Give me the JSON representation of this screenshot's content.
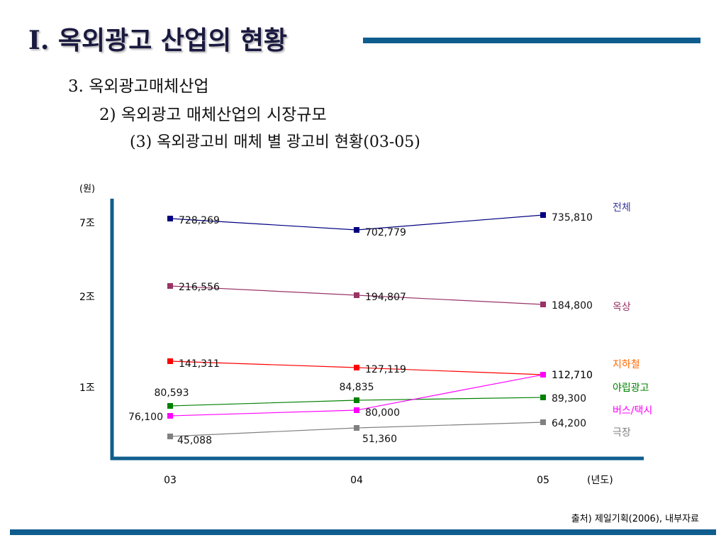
{
  "slide": {
    "title": "I.  옥외광고 산업의 현황",
    "subtitle1": "3. 옥외광고매체산업",
    "subtitle2": "2) 옥외광고 매체산업의 시장규모",
    "subtitle3": "(3) 옥외광고비 매체 별 광고비 현황(03-05)",
    "source": "출처) 제일기획(2006), 내부자료"
  },
  "chart_data": {
    "type": "line",
    "unit_label": "(원)",
    "x_axis_unit": "(년도)",
    "categories": [
      "03",
      "04",
      "05"
    ],
    "y_tick_labels": [
      "7조",
      "2조",
      "1조"
    ],
    "series": [
      {
        "name": "전체",
        "values": [
          728269,
          702779,
          735810
        ],
        "labels": [
          "728,269",
          "702,779",
          "735,810"
        ],
        "color": "#000080"
      },
      {
        "name": "옥상",
        "values": [
          216556,
          194807,
          184800
        ],
        "labels": [
          "216,556",
          "194,807",
          "184,800"
        ],
        "color": "#993366"
      },
      {
        "name": "지하철",
        "values": [
          141311,
          127119,
          112710
        ],
        "labels": [
          "141,311",
          "127,119",
          "112,710"
        ],
        "color": "#ff0000"
      },
      {
        "name": "야립광고",
        "values": [
          80593,
          84835,
          89300
        ],
        "labels": [
          "80,593",
          "84,835",
          "89,300"
        ],
        "color": "#008000"
      },
      {
        "name": "버스/택시",
        "values": [
          76100,
          80000,
          112710
        ],
        "labels": [
          "76,100",
          "80,000",
          "112,710"
        ],
        "color": "#ff00ff"
      },
      {
        "name": "극장",
        "values": [
          45088,
          51360,
          64200
        ],
        "labels": [
          "45,088",
          "51,360",
          "64,200"
        ],
        "color": "#808080"
      }
    ],
    "legend_colors": {
      "전체": "#3a3a9a",
      "옥상": "#993366",
      "지하철": "#ff6600",
      "야립광고": "#008000",
      "버스/택시": "#ff00ff",
      "극장": "#808080"
    },
    "axis_color": "#0f5d8e",
    "grid": false,
    "legend_placement": "right"
  }
}
